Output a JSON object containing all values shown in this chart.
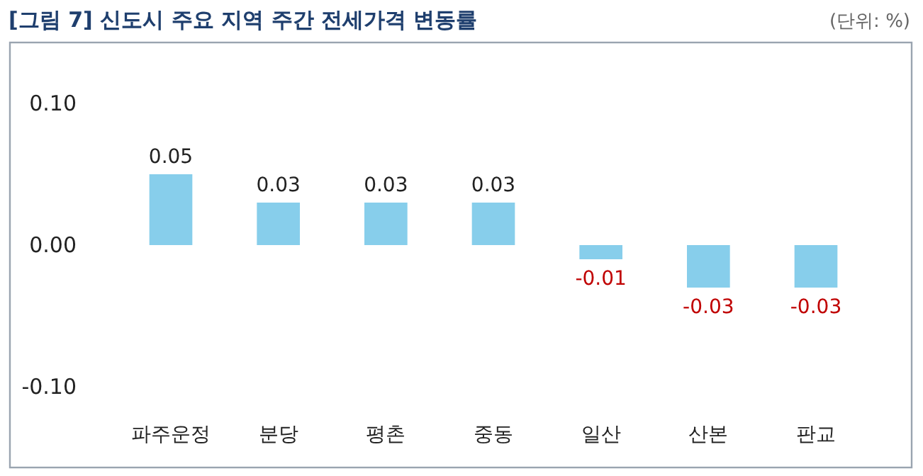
{
  "chart_data": {
    "type": "bar",
    "title": "[그림 7] 신도시 주요 지역 주간 전세가격 변동률",
    "annotations": [
      "(단위: %)"
    ],
    "categories": [
      "파주운정",
      "분당",
      "평촌",
      "중동",
      "일산",
      "산본",
      "판교"
    ],
    "values": [
      0.05,
      0.03,
      0.03,
      0.03,
      -0.01,
      -0.03,
      -0.03
    ],
    "color": "#87ceeb",
    "ylim": [
      -0.1,
      0.1
    ],
    "yticks": [
      {
        "value": -0.1,
        "label": "-0.10"
      },
      {
        "value": 0,
        "label": "0.00"
      },
      {
        "value": 0.1,
        "label": "0.10"
      }
    ],
    "data_labels": true,
    "grid": false
  }
}
